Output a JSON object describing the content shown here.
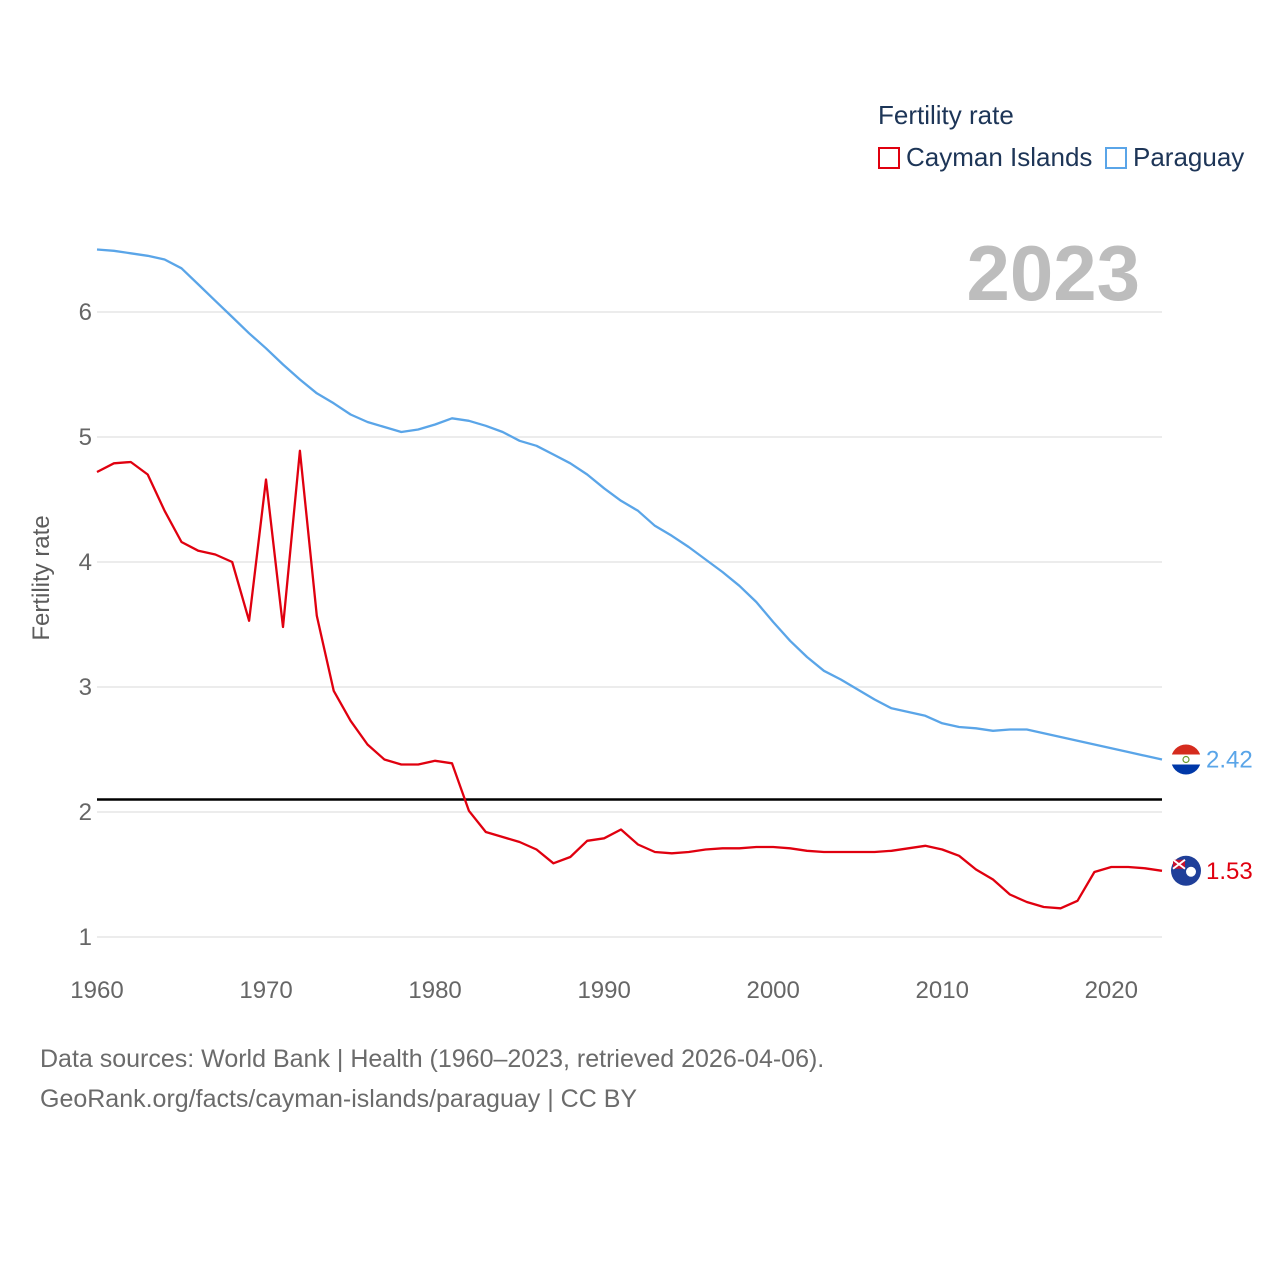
{
  "chart_data": {
    "type": "line",
    "title": "Fertility rate",
    "ylabel": "Fertility rate",
    "xlabel": "",
    "xlim": [
      1960,
      2023
    ],
    "ylim": [
      0.8,
      6.6
    ],
    "x_ticks": [
      1960,
      1970,
      1980,
      1990,
      2000,
      2010,
      2020
    ],
    "y_ticks": [
      1,
      2,
      3,
      4,
      5,
      6
    ],
    "reference_line": {
      "value": 2.1,
      "color": "#000000"
    },
    "year_display": "2023",
    "x": [
      1960,
      1961,
      1962,
      1963,
      1964,
      1965,
      1966,
      1967,
      1968,
      1969,
      1970,
      1971,
      1972,
      1973,
      1974,
      1975,
      1976,
      1977,
      1978,
      1979,
      1980,
      1981,
      1982,
      1983,
      1984,
      1985,
      1986,
      1987,
      1988,
      1989,
      1990,
      1991,
      1992,
      1993,
      1994,
      1995,
      1996,
      1997,
      1998,
      1999,
      2000,
      2001,
      2002,
      2003,
      2004,
      2005,
      2006,
      2007,
      2008,
      2009,
      2010,
      2011,
      2012,
      2013,
      2014,
      2015,
      2016,
      2017,
      2018,
      2019,
      2020,
      2021,
      2022,
      2023
    ],
    "series": [
      {
        "name": "Cayman Islands",
        "color": "#e0000f",
        "end_label": "1.53",
        "values": [
          4.72,
          4.79,
          4.8,
          4.7,
          4.41,
          4.16,
          4.09,
          4.06,
          4.0,
          3.53,
          4.66,
          3.48,
          4.89,
          3.57,
          2.97,
          2.73,
          2.54,
          2.42,
          2.38,
          2.38,
          2.41,
          2.39,
          2.01,
          1.84,
          1.8,
          1.76,
          1.7,
          1.59,
          1.64,
          1.77,
          1.79,
          1.86,
          1.74,
          1.68,
          1.67,
          1.68,
          1.7,
          1.71,
          1.71,
          1.72,
          1.72,
          1.71,
          1.69,
          1.68,
          1.68,
          1.68,
          1.68,
          1.69,
          1.71,
          1.73,
          1.7,
          1.65,
          1.54,
          1.46,
          1.34,
          1.28,
          1.24,
          1.23,
          1.29,
          1.52,
          1.56,
          1.56,
          1.55,
          1.53
        ]
      },
      {
        "name": "Paraguay",
        "color": "#5aa5e8",
        "end_label": "2.42",
        "values": [
          6.5,
          6.49,
          6.47,
          6.45,
          6.42,
          6.35,
          6.22,
          6.09,
          5.96,
          5.83,
          5.71,
          5.58,
          5.46,
          5.35,
          5.27,
          5.18,
          5.12,
          5.08,
          5.04,
          5.06,
          5.1,
          5.15,
          5.13,
          5.09,
          5.04,
          4.97,
          4.93,
          4.86,
          4.79,
          4.7,
          4.59,
          4.49,
          4.41,
          4.29,
          4.21,
          4.12,
          4.02,
          3.92,
          3.81,
          3.68,
          3.52,
          3.37,
          3.24,
          3.13,
          3.06,
          2.98,
          2.9,
          2.83,
          2.8,
          2.77,
          2.71,
          2.68,
          2.67,
          2.65,
          2.66,
          2.66,
          2.63,
          2.6,
          2.57,
          2.54,
          2.51,
          2.48,
          2.45,
          2.42
        ]
      }
    ]
  },
  "legend": {
    "title": "Fertility rate",
    "items": [
      {
        "label": "Cayman Islands",
        "color": "#e0000f"
      },
      {
        "label": "Paraguay",
        "color": "#5aa5e8"
      }
    ]
  },
  "footer": {
    "source_line1": "Data sources: World Bank | Health (1960–2023, retrieved 2026-04-06).",
    "source_line2": "GeoRank.org/facts/cayman-islands/paraguay | CC BY"
  }
}
